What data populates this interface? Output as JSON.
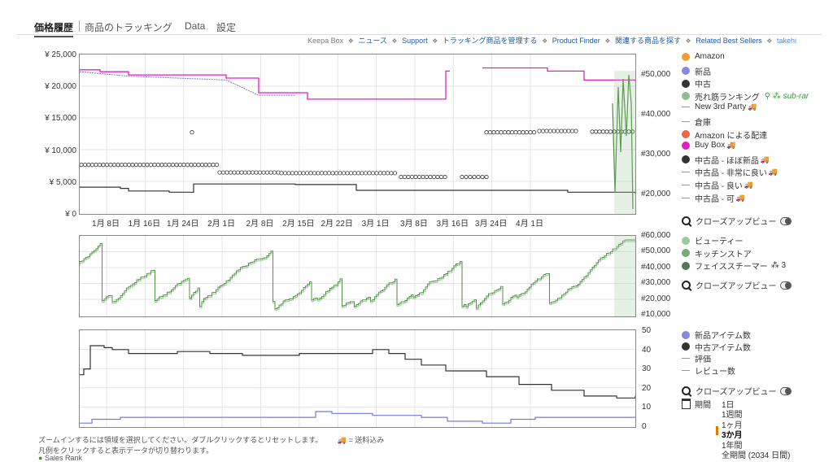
{
  "tabs": [
    "価格履歴",
    "商品のトラッキング",
    "Data",
    "設定"
  ],
  "topnav": {
    "brand": "Keepa Box",
    "links": [
      "ニュース",
      "Support",
      "トラッキング商品を管理する",
      "Product Finder",
      "関連する商品を探す",
      "Related Best Sellers",
      "takehi"
    ]
  },
  "price_axis": [
    "¥ 25,000",
    "¥ 20,000",
    "¥ 15,000",
    "¥ 10,000",
    "¥ 5,000",
    "¥ 0"
  ],
  "rank_axis_main": [
    "#50,000",
    "#40,000",
    "#30,000",
    "#20,000"
  ],
  "date_axis": [
    "1月 8日",
    "1月 16日",
    "1月 24日",
    "2月 1日",
    "2月 8日",
    "2月 15日",
    "2月 22日",
    "3月 1日",
    "3月 8日",
    "3月 16日",
    "3月 24日",
    "4月 1日"
  ],
  "rank_axis_sub": [
    "#60,000",
    "#50,000",
    "#40,000",
    "#30,000",
    "#20,000",
    "#10,000"
  ],
  "count_axis": [
    "50",
    "40",
    "30",
    "20",
    "10",
    "0"
  ],
  "legend_main": [
    {
      "label": "Amazon",
      "kind": "dot",
      "color": "#f0a030"
    },
    {
      "label": "新品",
      "kind": "dot",
      "color": "#8888dd"
    },
    {
      "label": "中古",
      "kind": "dot",
      "color": "#333333"
    },
    {
      "label": "売れ筋ランキング",
      "kind": "dot",
      "color": "#8fbf8f",
      "extra": "sub-rar"
    },
    {
      "label": "New 3rd Party",
      "kind": "dash",
      "truck": true
    },
    {
      "label": "倉庫",
      "kind": "dash"
    },
    {
      "label": "Amazon による配達",
      "kind": "dot",
      "color": "#ee6644"
    },
    {
      "label": "Buy Box",
      "kind": "dot",
      "color": "#e020c0",
      "truck": true
    },
    {
      "label": "中古品 - ほぼ新品",
      "kind": "dot",
      "color": "#333333",
      "truck": true
    },
    {
      "label": "中古品 - 非常に良い",
      "kind": "dash",
      "truck": true
    },
    {
      "label": "中古品 - 良い",
      "kind": "dash",
      "truck": true
    },
    {
      "label": "中古品 - 可",
      "kind": "dash",
      "truck": true
    }
  ],
  "closeup_label": "クローズアップビュー",
  "legend_sub": [
    {
      "label": "ビューティー",
      "color": "#9bc99b"
    },
    {
      "label": "キッチンストア",
      "color": "#77aa77"
    },
    {
      "label": "フェイススチーマー",
      "color": "#557755",
      "suffix": "3"
    }
  ],
  "legend_count": [
    {
      "label": "新品アイテム数",
      "kind": "dot",
      "color": "#8888dd"
    },
    {
      "label": "中古アイテム数",
      "kind": "dot",
      "color": "#333333"
    },
    {
      "label": "評価",
      "kind": "dash"
    },
    {
      "label": "レビュー数",
      "kind": "dash"
    }
  ],
  "period": {
    "label": "期間",
    "options": [
      "1日",
      "1週間",
      "1ヶ月",
      "3か月",
      "1年間",
      "全期間 (2034 日間)"
    ],
    "selected": "3か月"
  },
  "footnotes": [
    "ズームインするには領域を選択してください。ダブルクリックするとリセットします。",
    "凡例をクリックすると表示データが切り替わります。"
  ],
  "truck_note": "= 送料込み",
  "cut_text": "Sales Rank",
  "colors": {
    "buybox": "#e020c0",
    "new": "#7777dd",
    "used": "#333333",
    "rank": "#4c8a3c",
    "rank_light": "#9bc99b",
    "grid": "#e4e4e4"
  }
}
